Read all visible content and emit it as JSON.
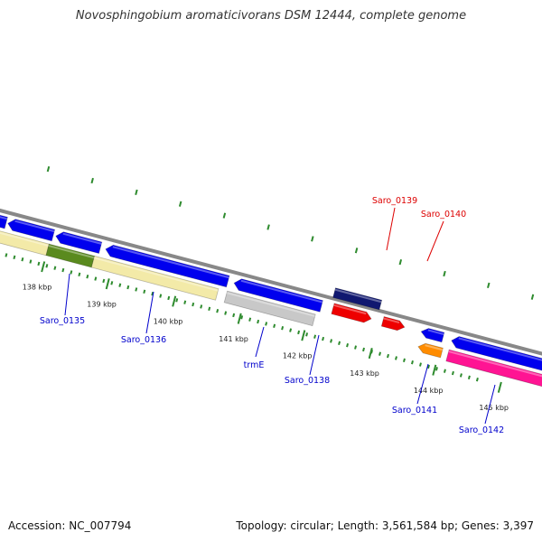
{
  "title": "Novosphingobium aromaticivorans DSM 12444, complete genome",
  "footer": {
    "accession": "Accession: NC_007794",
    "summary": "Topology: circular; Length: 3,561,584 bp; Genes: 3,397"
  },
  "colors": {
    "backbone": "#888888",
    "ticks": "#2e8b2e",
    "blue_label": "#0000cc",
    "red_label": "#dd0000"
  },
  "ticks": [
    "138 kbp",
    "139 kbp",
    "140 kbp",
    "141 kbp",
    "142 kbp",
    "143 kbp",
    "144 kbp",
    "145 kbp"
  ],
  "gene_labels": [
    {
      "text": "Saro_0135",
      "color": "blue"
    },
    {
      "text": "Saro_0136",
      "color": "blue"
    },
    {
      "text": "trmE",
      "color": "blue"
    },
    {
      "text": "Saro_0138",
      "color": "blue"
    },
    {
      "text": "Saro_0139",
      "color": "red"
    },
    {
      "text": "Saro_0140",
      "color": "red"
    },
    {
      "text": "Saro_0141",
      "color": "blue"
    },
    {
      "text": "Saro_0142",
      "color": "blue"
    }
  ],
  "features": [
    {
      "color": "#0000ee",
      "strand": "minus"
    },
    {
      "color": "#0000ee",
      "strand": "minus"
    },
    {
      "color": "#0000ee",
      "strand": "minus"
    },
    {
      "color": "#f3eaa8",
      "strand": "minus"
    },
    {
      "color": "#5a8a1e",
      "strand": "minus"
    },
    {
      "color": "#f3eaa8",
      "strand": "minus"
    },
    {
      "color": "#0000ee",
      "strand": "minus"
    },
    {
      "color": "#c8c8c8",
      "strand": "minus"
    },
    {
      "color": "#0000ee",
      "strand": "minus"
    },
    {
      "color": "#101870",
      "strand": "plus"
    },
    {
      "color": "#ee0000",
      "strand": "plus"
    },
    {
      "color": "#ee0000",
      "strand": "plus"
    },
    {
      "color": "#0000ee",
      "strand": "minus"
    },
    {
      "color": "#ff8c00",
      "strand": "minus"
    },
    {
      "color": "#0000ee",
      "strand": "minus"
    },
    {
      "color": "#ff1493",
      "strand": "minus"
    }
  ]
}
